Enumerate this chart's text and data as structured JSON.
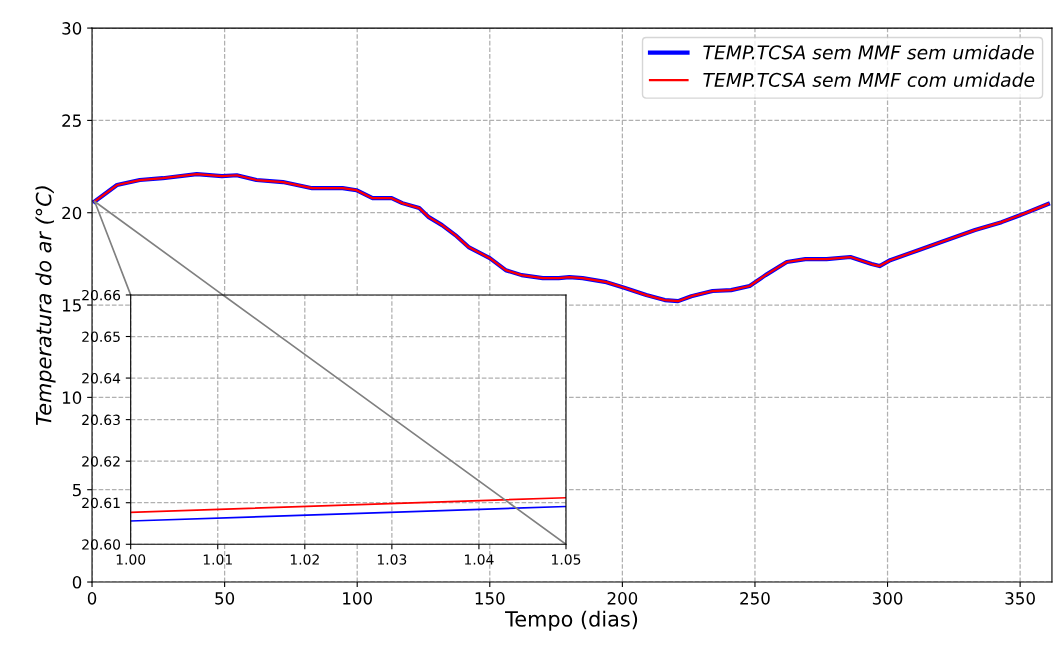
{
  "chart_data": [
    {
      "type": "line",
      "xlabel": "Tempo (dias)",
      "ylabel": "Temperatura do ar (°C)",
      "xlim": [
        0,
        362
      ],
      "ylim": [
        0,
        30
      ],
      "xticks": [
        0,
        50,
        100,
        150,
        200,
        250,
        300,
        350
      ],
      "yticks": [
        0,
        5,
        10,
        15,
        20,
        25,
        30
      ],
      "grid": true,
      "legend": "top right",
      "x": [
        1,
        9.4,
        18,
        26.7,
        39.5,
        49,
        54.6,
        62,
        72,
        83,
        94.5,
        99.7,
        105.8,
        113,
        117,
        123.4,
        127,
        132,
        137,
        142,
        150,
        156,
        162,
        170,
        176,
        180,
        185,
        194,
        201,
        209,
        216,
        221,
        226,
        234,
        241,
        248,
        254,
        262,
        269,
        277,
        286,
        294,
        297,
        301,
        311.6,
        320,
        333,
        343,
        352,
        360.5
      ],
      "series": [
        {
          "name": "TEMP.TCSA sem MMF sem umidade",
          "color": "#0000ff",
          "values": [
            20.61,
            21.5,
            21.77,
            21.87,
            22.09,
            21.98,
            22.03,
            21.77,
            21.66,
            21.33,
            21.33,
            21.22,
            20.79,
            20.79,
            20.52,
            20.25,
            19.76,
            19.33,
            18.79,
            18.14,
            17.54,
            16.89,
            16.62,
            16.46,
            16.46,
            16.51,
            16.46,
            16.24,
            15.92,
            15.54,
            15.27,
            15.21,
            15.48,
            15.76,
            15.81,
            16.03,
            16.62,
            17.33,
            17.49,
            17.49,
            17.6,
            17.22,
            17.11,
            17.43,
            17.97,
            18.4,
            19.06,
            19.49,
            19.98,
            20.47
          ]
        },
        {
          "name": "TEMP.TCSA sem MMF com umidade",
          "color": "#ff0000",
          "values": [
            20.61,
            21.5,
            21.77,
            21.87,
            22.09,
            21.98,
            22.03,
            21.77,
            21.66,
            21.33,
            21.33,
            21.22,
            20.79,
            20.79,
            20.52,
            20.25,
            19.76,
            19.33,
            18.79,
            18.14,
            17.54,
            16.89,
            16.62,
            16.46,
            16.46,
            16.51,
            16.46,
            16.24,
            15.92,
            15.54,
            15.27,
            15.21,
            15.48,
            15.76,
            15.81,
            16.03,
            16.62,
            17.33,
            17.49,
            17.49,
            17.6,
            17.22,
            17.11,
            17.43,
            17.97,
            18.4,
            19.06,
            19.49,
            19.98,
            20.47
          ]
        },
        {
          "color": "#808080",
          "x": [
            1,
            14.6
          ],
          "values": [
            20.61,
            15.54
          ]
        },
        {
          "color": "#808080",
          "x": [
            1,
            49.4
          ],
          "values": [
            20.61,
            15.54
          ]
        }
      ]
    },
    {
      "type": "line",
      "xlim": [
        1.0,
        1.05
      ],
      "ylim": [
        20.6,
        20.66
      ],
      "grid": true,
      "xticks": [
        {
          "value": 1.0,
          "label": "1.00"
        },
        {
          "value": 1.01,
          "label": "1.01"
        },
        {
          "value": 1.02,
          "label": "1.02"
        },
        {
          "value": 1.03,
          "label": "1.03"
        },
        {
          "value": 1.04,
          "label": "1.04"
        },
        {
          "value": 1.05,
          "label": "1.05"
        }
      ],
      "yticks": [
        {
          "value": 20.6,
          "label": "20.60"
        },
        {
          "value": 20.61,
          "label": "20.61"
        },
        {
          "value": 20.62,
          "label": "20.62"
        },
        {
          "value": 20.63,
          "label": "20.63"
        },
        {
          "value": 20.64,
          "label": "20.64"
        },
        {
          "value": 20.65,
          "label": "20.65"
        },
        {
          "value": 20.66,
          "label": "20.66"
        }
      ],
      "x": [
        1.0,
        1.05
      ],
      "series": [
        {
          "color": "#0000ff",
          "values": [
            20.6056,
            20.6091
          ]
        },
        {
          "color": "#ff0000",
          "values": [
            20.6077,
            20.6112
          ]
        },
        {
          "color": "#808080",
          "x": [
            1.0106,
            1.05
          ],
          "values": [
            20.66,
            20.6
          ]
        }
      ]
    }
  ]
}
